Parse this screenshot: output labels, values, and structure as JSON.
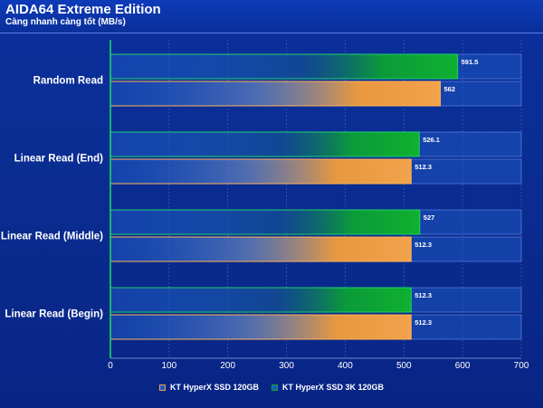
{
  "header": {
    "title": "AIDA64 Extreme Edition",
    "subtitle": "Càng nhanh càng tốt (MB/s)"
  },
  "colors": {
    "background": "#0a2d92",
    "bar_track": "#1f57c2",
    "orange": "#f0a04a",
    "green": "#0fa82f",
    "grid": "#6f8fe0"
  },
  "chart_data": {
    "type": "bar",
    "orientation": "horizontal",
    "categories": [
      "Random Read",
      "Linear Read (End)",
      "Linear Read (Middle)",
      "Linear Read (Begin)"
    ],
    "series": [
      {
        "name": "KT HyperX SSD 3K 120GB",
        "values": [
          591.5,
          526.1,
          527,
          512.3
        ],
        "value_labels": [
          "591.5",
          "526.1",
          "527",
          "512.3"
        ],
        "color": "#0fa82f"
      },
      {
        "name": "KT HyperX SSD 120GB",
        "values": [
          562,
          512.3,
          512.3,
          512.3
        ],
        "value_labels": [
          "562",
          "512.3",
          "512.3",
          "512.3"
        ],
        "color": "#f0a04a"
      }
    ],
    "x_ticks": [
      "0",
      "100",
      "200",
      "300",
      "400",
      "500",
      "600",
      "700"
    ],
    "xlim": [
      0,
      700
    ],
    "grid": true,
    "legend_position": "bottom"
  },
  "legend": [
    {
      "label": "KT HyperX SSD 120GB",
      "color": "#f0a04a"
    },
    {
      "label": "KT HyperX SSD 3K 120GB",
      "color": "#0fa82f"
    }
  ]
}
